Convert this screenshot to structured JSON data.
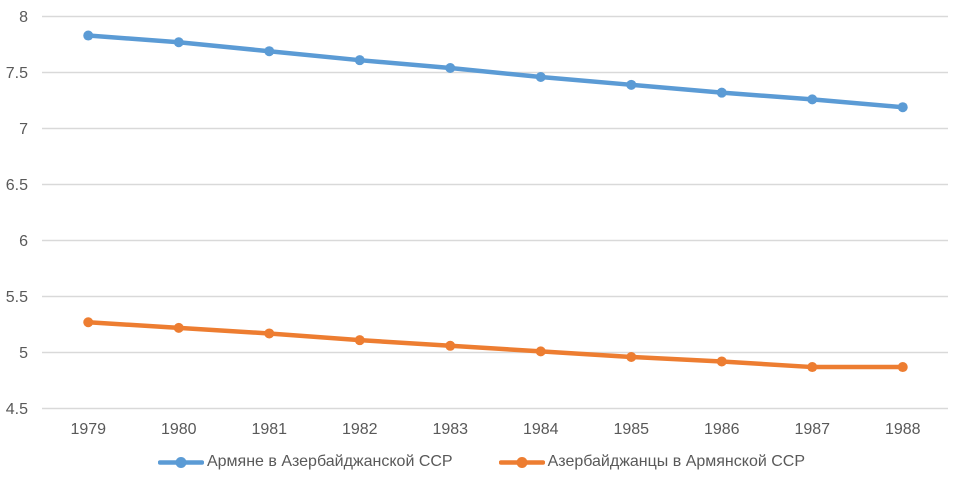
{
  "chart_data": {
    "type": "line",
    "x": [
      "1979",
      "1980",
      "1981",
      "1982",
      "1983",
      "1984",
      "1985",
      "1986",
      "1987",
      "1988"
    ],
    "series": [
      {
        "name": "Армяне в Азербайджанской ССР",
        "color": "#5B9BD5",
        "values": [
          7.83,
          7.77,
          7.69,
          7.61,
          7.54,
          7.46,
          7.39,
          7.32,
          7.26,
          7.19
        ]
      },
      {
        "name": "Азербайджанцы в Армянской ССР",
        "color": "#ED7D31",
        "values": [
          5.27,
          5.22,
          5.17,
          5.11,
          5.06,
          5.01,
          4.96,
          4.92,
          4.87,
          4.87
        ]
      }
    ],
    "title": "",
    "xlabel": "",
    "ylabel": "",
    "ylim": [
      4.5,
      8
    ],
    "yticks": [
      8,
      7.5,
      7,
      6.5,
      6,
      5.5,
      5,
      4.5
    ],
    "ytick_labels": [
      "8",
      "7.5",
      "7",
      "6.5",
      "6",
      "5.5",
      "5",
      "4.5"
    ],
    "grid": true,
    "legend_position": "bottom"
  },
  "colors": {
    "background": "#FFFFFF",
    "gridline": "#D9D9D9",
    "tick_text": "#595959",
    "legend_text": "#595959",
    "series_blue": "#5B9BD5",
    "series_orange": "#ED7D31"
  }
}
